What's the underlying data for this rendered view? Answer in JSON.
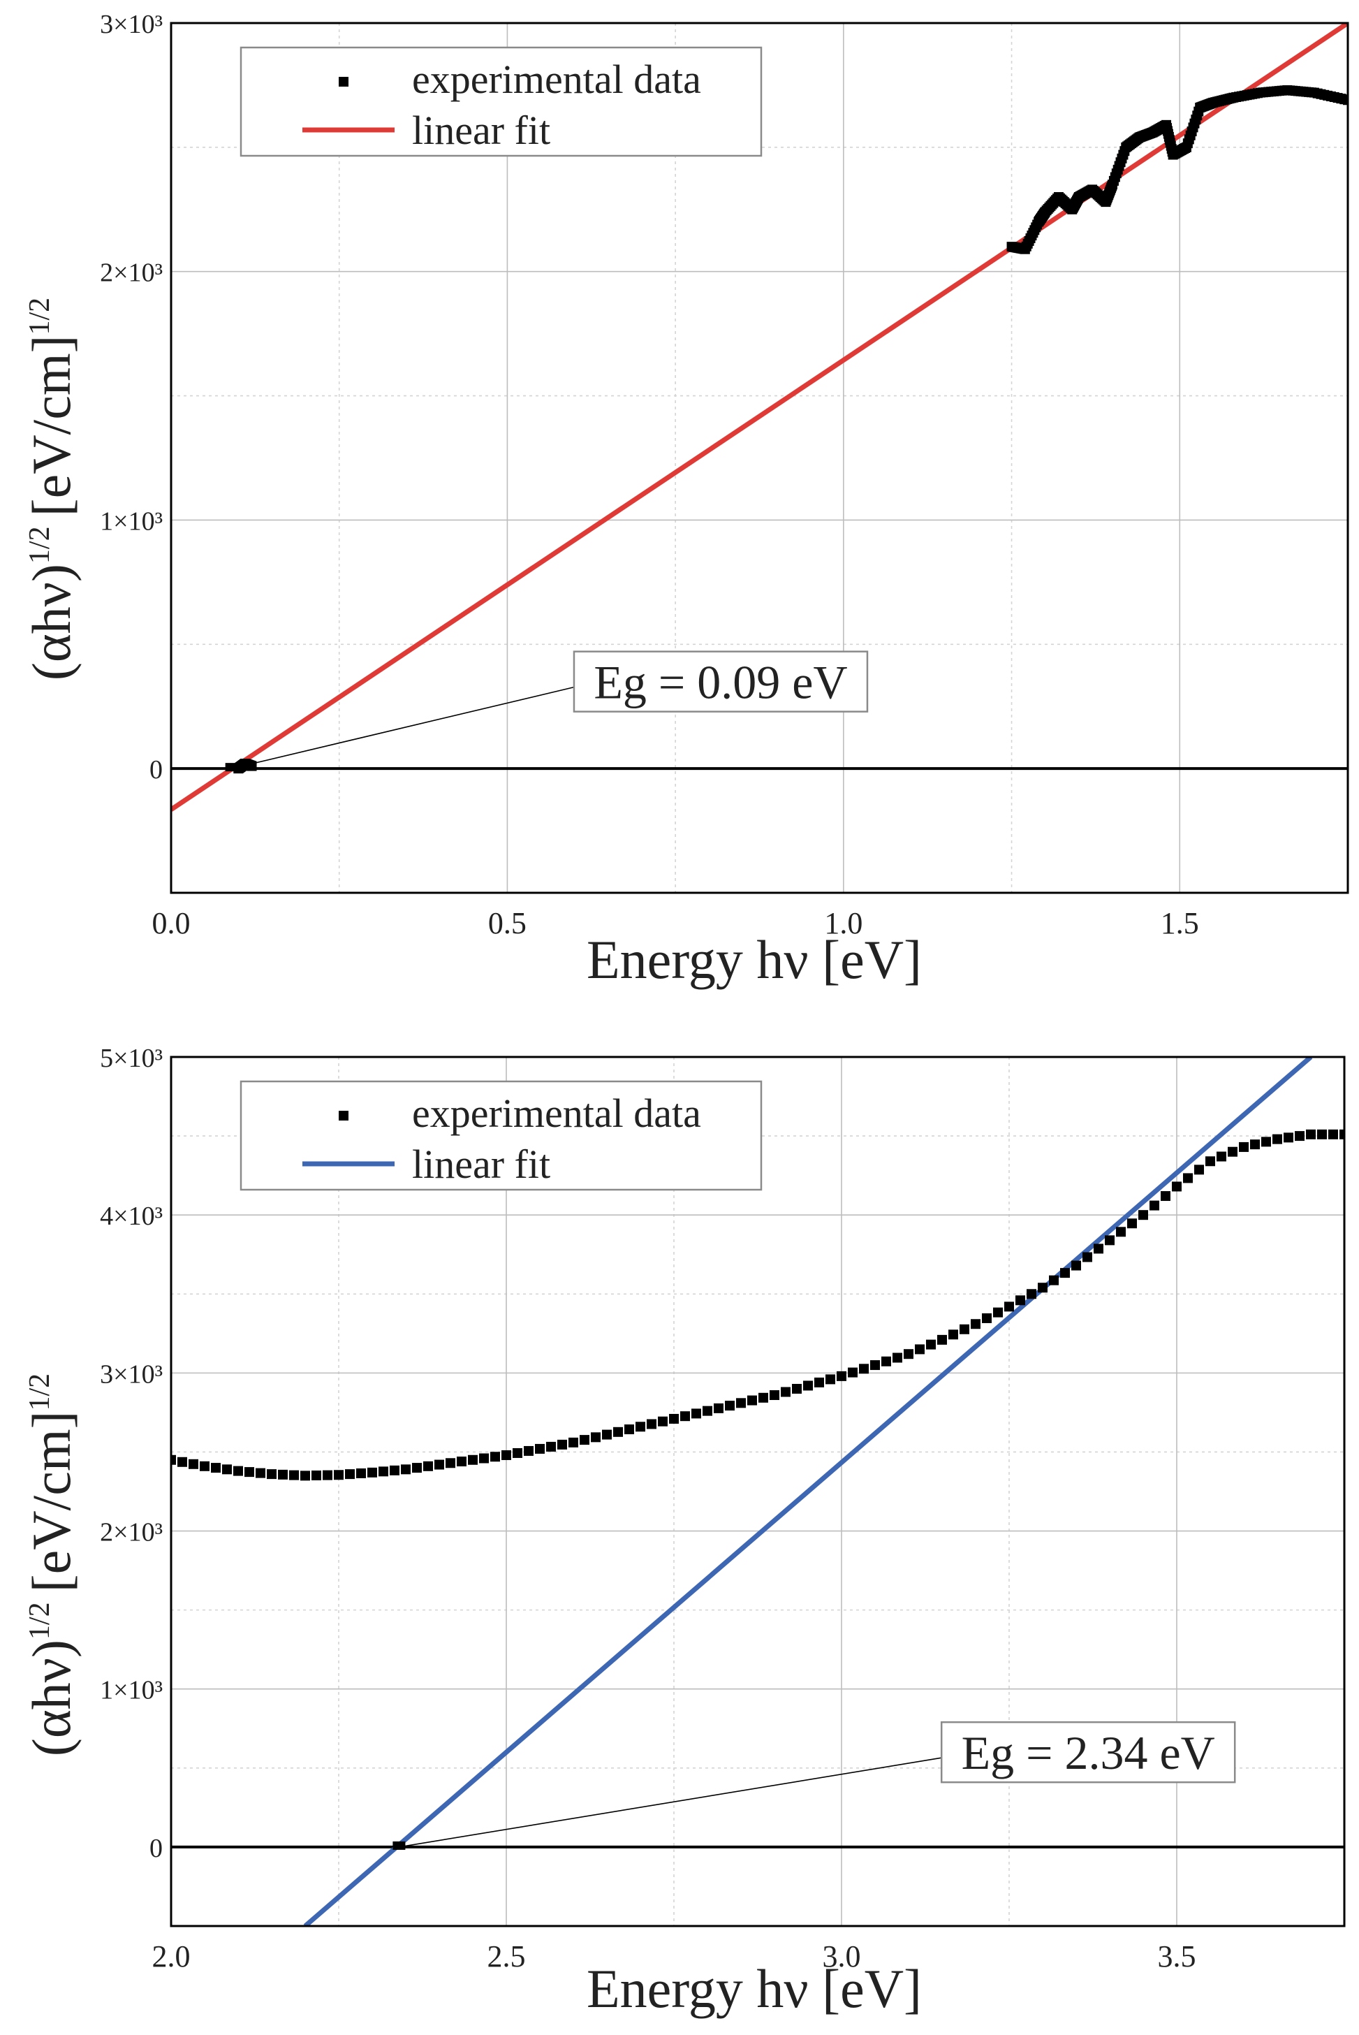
{
  "chart_data": [
    {
      "type": "scatter",
      "xlabel": "Energy hν [eV]",
      "ylabel_base": "(αhν)",
      "ylabel_exp": "1/2",
      "ylabel_unit": "[eV/cm]",
      "ylabel_unit_exp": "1/2",
      "xlim": [
        0.0,
        1.75
      ],
      "ylim": [
        -500,
        3000
      ],
      "x_ticks": [
        0.0,
        0.5,
        1.0,
        1.5
      ],
      "x_tick_labels": [
        "0.0",
        "0.5",
        "1.0",
        "1.5"
      ],
      "x_minor_grid": [
        0.25,
        0.75,
        1.25
      ],
      "y_ticks": [
        0,
        1000,
        2000,
        3000
      ],
      "y_tick_labels": [
        "0",
        "1×10³",
        "2×10³",
        "3×10³"
      ],
      "y_minor_grid": [
        500,
        1500,
        2500
      ],
      "grid": true,
      "legend_position": "top-left",
      "legend": {
        "data_label": "experimental data",
        "fit_label": "linear fit"
      },
      "fit_color": "#e03a36",
      "fit": {
        "x": [
          0.0,
          1.75
        ],
        "y": [
          -165,
          3000
        ]
      },
      "data_points": {
        "x": [
          0.1,
          0.11,
          0.12,
          1.25,
          1.27,
          1.29,
          1.3,
          1.32,
          1.34,
          1.35,
          1.37,
          1.39,
          1.4,
          1.42,
          1.44,
          1.46,
          1.48,
          1.49,
          1.51,
          1.53,
          1.55,
          1.58,
          1.62,
          1.66,
          1.7,
          1.75
        ],
        "y": [
          0,
          20,
          10,
          2100,
          2090,
          2200,
          2240,
          2300,
          2250,
          2300,
          2330,
          2280,
          2350,
          2500,
          2540,
          2560,
          2590,
          2470,
          2500,
          2660,
          2680,
          2700,
          2720,
          2730,
          2720,
          2690
        ]
      },
      "annotation": {
        "text": "Eg = 0.09 eV",
        "x": 0.09,
        "y": 0,
        "text_x": 0.62,
        "text_y": 350
      }
    },
    {
      "type": "scatter",
      "xlabel": "Energy hν [eV]",
      "ylabel_base": "(αhν)",
      "ylabel_exp": "1/2",
      "ylabel_unit": "[eV/cm]",
      "ylabel_unit_exp": "1/2",
      "xlim": [
        2.0,
        3.75
      ],
      "ylim": [
        -500,
        5000
      ],
      "x_ticks": [
        2.0,
        2.5,
        3.0,
        3.5
      ],
      "x_tick_labels": [
        "2.0",
        "2.5",
        "3.0",
        "3.5"
      ],
      "x_minor_grid": [
        2.25,
        2.75,
        3.25
      ],
      "y_ticks": [
        0,
        1000,
        2000,
        3000,
        4000,
        5000
      ],
      "y_tick_labels": [
        "0",
        "1×10³",
        "2×10³",
        "3×10³",
        "4×10³",
        "5×10³"
      ],
      "y_minor_grid": [
        500,
        1500,
        2500,
        3500,
        4500
      ],
      "grid": true,
      "legend_position": "top-left",
      "legend": {
        "data_label": "experimental data",
        "fit_label": "linear fit"
      },
      "fit_color": "#3d66b3",
      "fit": {
        "x": [
          2.2,
          3.7
        ],
        "y": [
          -500,
          5000
        ]
      },
      "data_points": {
        "x": [
          2.0,
          2.05,
          2.1,
          2.15,
          2.2,
          2.25,
          2.3,
          2.35,
          2.4,
          2.45,
          2.5,
          2.55,
          2.6,
          2.65,
          2.7,
          2.75,
          2.8,
          2.85,
          2.9,
          2.95,
          3.0,
          3.05,
          3.1,
          3.15,
          3.2,
          3.25,
          3.3,
          3.35,
          3.4,
          3.45,
          3.5,
          3.55,
          3.6,
          3.65,
          3.7,
          3.75
        ],
        "y": [
          2450,
          2410,
          2380,
          2360,
          2350,
          2355,
          2370,
          2390,
          2420,
          2450,
          2480,
          2520,
          2560,
          2610,
          2660,
          2710,
          2760,
          2810,
          2860,
          2920,
          2980,
          3050,
          3120,
          3210,
          3310,
          3420,
          3540,
          3680,
          3840,
          4000,
          4180,
          4340,
          4430,
          4480,
          4510,
          4510
        ]
      },
      "annotation": {
        "text": "Eg = 2.34 eV",
        "x": 2.34,
        "y": 0,
        "text_x": 3.17,
        "text_y": 600
      }
    }
  ]
}
